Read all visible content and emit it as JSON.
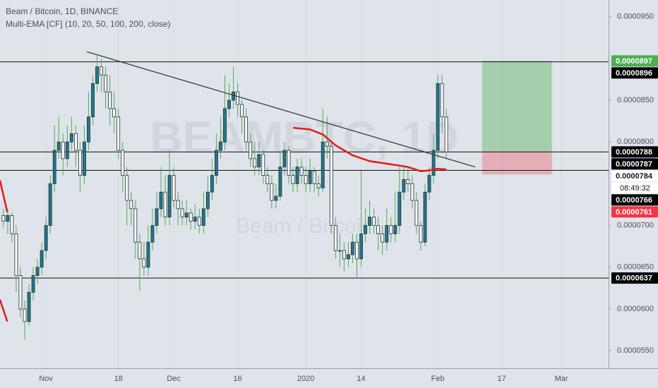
{
  "chart_data": {
    "type": "candlestick",
    "title": "Beam / Bitcoin, 1D, BINANCE",
    "indicator": "Multi-EMA [CF] (10, 20, 50, 100, 200, close)",
    "watermark": "BEAMBTC, 1D",
    "watermark_sub": "Beam / Bitcoin",
    "up_color": "#217a8a",
    "down_color": "#ffffff",
    "wick_color": "#4fae55",
    "open": [
      7.12e-05,
      7.05e-05,
      7.12e-05,
      6.9e-05,
      6.4e-05,
      6e-05,
      5.85e-05,
      6.2e-05,
      6.4e-05,
      6.5e-05,
      6.7e-05,
      7e-05,
      7.5e-05,
      7.9e-05,
      8e-05,
      7.8e-05,
      8e-05,
      8.1e-05,
      7.9e-05,
      7.6e-05,
      8e-05,
      8.3e-05,
      8.7e-05,
      8.9e-05,
      8.8e-05,
      8.6e-05,
      8.4e-05,
      8.3e-05,
      7.9e-05,
      7.6e-05,
      7.3e-05,
      7.2e-05,
      6.8e-05,
      6.6e-05,
      6.5e-05,
      6.8e-05,
      7e-05,
      7.2e-05,
      7.4e-05,
      7.1e-05,
      7.6e-05,
      7.3e-05,
      7.2e-05,
      7.1e-05,
      7.15e-05,
      7.05e-05,
      7.1e-05,
      7e-05,
      7.2e-05,
      7.4e-05,
      7.6e-05,
      7.9e-05,
      8e-05,
      8.4e-05,
      8.5e-05,
      8.6e-05,
      8.45e-05,
      8.3e-05,
      8e-05,
      7.8e-05,
      7.7e-05,
      7.85e-05,
      7.6e-05,
      7.5e-05,
      7.3e-05,
      7.35e-05,
      7.7e-05,
      7.9e-05,
      7.6e-05,
      7.5e-05,
      7.7e-05,
      7.6e-05,
      7.5e-05,
      7.65e-05,
      7.5e-05,
      7.45e-05,
      8e-05,
      7.95e-05,
      7e-05,
      6.7e-05,
      6.7e-05,
      6.6e-05,
      6.65e-05,
      6.8e-05,
      6.6e-05,
      6.9e-05,
      7e-05,
      7.1e-05,
      7e-05,
      6.9e-05,
      6.8e-05,
      7e-05,
      6.9e-05,
      7e-05,
      7.4e-05,
      7.55e-05,
      7.5e-05,
      7.3e-05,
      7e-05,
      6.8e-05,
      7.4e-05,
      7.6e-05,
      7.9e-05,
      8.7e-05,
      8.3e-05
    ],
    "high": [
      7.2e-05,
      7.2e-05,
      7.15e-05,
      7e-05,
      6.5e-05,
      6.1e-05,
      6.3e-05,
      6.5e-05,
      6.6e-05,
      6.8e-05,
      7.1e-05,
      7.6e-05,
      8.2e-05,
      8.3e-05,
      8.1e-05,
      8.2e-05,
      8.3e-05,
      8.2e-05,
      8e-05,
      8.2e-05,
      8.6e-05,
      8.8e-05,
      9.03e-05,
      9e-05,
      8.9e-05,
      8.8e-05,
      8.6e-05,
      8.4e-05,
      8e-05,
      7.7e-05,
      7.4e-05,
      7.3e-05,
      6.9e-05,
      6.8e-05,
      7e-05,
      7.2e-05,
      7.4e-05,
      7.7e-05,
      7.6e-05,
      7.9e-05,
      7.7e-05,
      7.4e-05,
      7.3e-05,
      7.3e-05,
      7.2e-05,
      7.25e-05,
      7.2e-05,
      7.4e-05,
      7.6e-05,
      7.8e-05,
      8.1e-05,
      8.3e-05,
      8.8e-05,
      8.7e-05,
      8.9e-05,
      8.7e-05,
      8.5e-05,
      8.4e-05,
      8.1e-05,
      8e-05,
      8e-05,
      7.9e-05,
      7.7e-05,
      7.6e-05,
      7.5e-05,
      7.9e-05,
      8e-05,
      7.95e-05,
      7.7e-05,
      7.8e-05,
      7.8e-05,
      7.7e-05,
      7.8e-05,
      7.7e-05,
      7.6e-05,
      8.4e-05,
      8.3e-05,
      8e-05,
      7.1e-05,
      6.9e-05,
      6.8e-05,
      6.8e-05,
      6.9e-05,
      6.9e-05,
      7.65e-05,
      7.2e-05,
      7.3e-05,
      7.2e-05,
      7.1e-05,
      7e-05,
      7.2e-05,
      7.1e-05,
      7.4e-05,
      7.7e-05,
      7.7e-05,
      7.7e-05,
      7.6e-05,
      7.4e-05,
      7.05e-05,
      7.5e-05,
      7.7e-05,
      8.1e-05,
      8.8e-05,
      8.8e-05,
      8.4e-05
    ],
    "low": [
      6.98e-05,
      6.9e-05,
      6.8e-05,
      6.2e-05,
      5.9e-05,
      5.63e-05,
      5.8e-05,
      6.1e-05,
      6.3e-05,
      6.4e-05,
      6.6e-05,
      6.9e-05,
      7.4e-05,
      7.8e-05,
      7.6e-05,
      7.7e-05,
      7.9e-05,
      7.7e-05,
      7.4e-05,
      7.5e-05,
      7.9e-05,
      8.2e-05,
      8.6e-05,
      8.6e-05,
      8.4e-05,
      8.2e-05,
      8.1e-05,
      7.8e-05,
      7.4e-05,
      7e-05,
      7e-05,
      6.6e-05,
      6.22e-05,
      6.4e-05,
      6.4e-05,
      6.7e-05,
      6.9e-05,
      7.1e-05,
      7e-05,
      7e-05,
      7.2e-05,
      7e-05,
      7e-05,
      7e-05,
      6.95e-05,
      6.95e-05,
      6.9e-05,
      6.9e-05,
      7.1e-05,
      7.3e-05,
      7.5e-05,
      7.8e-05,
      7.9e-05,
      8.3e-05,
      8.4e-05,
      8.3e-05,
      8.1e-05,
      7.9e-05,
      7.7e-05,
      7.6e-05,
      7.6e-05,
      7.5e-05,
      7.4e-05,
      7.2e-05,
      7.2e-05,
      7.3e-05,
      7.6e-05,
      7.5e-05,
      7.4e-05,
      7.4e-05,
      7.5e-05,
      7.4e-05,
      7.4e-05,
      7.4e-05,
      7.35e-05,
      7.4e-05,
      7.8e-05,
      6.9e-05,
      6.6e-05,
      6.5e-05,
      6.45e-05,
      6.5e-05,
      6.55e-05,
      6.37e-05,
      6.5e-05,
      6.8e-05,
      6.9e-05,
      6.9e-05,
      6.7e-05,
      6.65e-05,
      6.7e-05,
      6.8e-05,
      6.8e-05,
      6.9e-05,
      7.3e-05,
      7.4e-05,
      7.2e-05,
      6.9e-05,
      6.7e-05,
      6.75e-05,
      7.3e-05,
      7.5e-05,
      7.8e-05,
      8.1e-05,
      7.8e-05
    ],
    "close": [
      7.05e-05,
      7.12e-05,
      6.9e-05,
      6.4e-05,
      6e-05,
      5.85e-05,
      6.2e-05,
      6.4e-05,
      6.5e-05,
      6.7e-05,
      7e-05,
      7.5e-05,
      7.9e-05,
      8e-05,
      7.8e-05,
      8e-05,
      8.1e-05,
      7.9e-05,
      7.6e-05,
      8e-05,
      8.3e-05,
      8.7e-05,
      8.9e-05,
      8.8e-05,
      8.6e-05,
      8.4e-05,
      8.3e-05,
      7.9e-05,
      7.6e-05,
      7.3e-05,
      7.2e-05,
      6.8e-05,
      6.6e-05,
      6.5e-05,
      6.8e-05,
      7e-05,
      7.2e-05,
      7.4e-05,
      7.1e-05,
      7.6e-05,
      7.3e-05,
      7.2e-05,
      7.1e-05,
      7.15e-05,
      7.05e-05,
      7.1e-05,
      7e-05,
      7.2e-05,
      7.4e-05,
      7.6e-05,
      7.9e-05,
      8e-05,
      8.4e-05,
      8.5e-05,
      8.6e-05,
      8.45e-05,
      8.3e-05,
      8e-05,
      7.8e-05,
      7.7e-05,
      7.85e-05,
      7.6e-05,
      7.5e-05,
      7.3e-05,
      7.35e-05,
      7.7e-05,
      7.9e-05,
      7.6e-05,
      7.5e-05,
      7.7e-05,
      7.6e-05,
      7.5e-05,
      7.65e-05,
      7.5e-05,
      7.45e-05,
      8e-05,
      7.95e-05,
      7e-05,
      6.7e-05,
      6.7e-05,
      6.6e-05,
      6.65e-05,
      6.8e-05,
      6.6e-05,
      6.9e-05,
      7e-05,
      7.1e-05,
      7e-05,
      6.9e-05,
      6.8e-05,
      7e-05,
      6.9e-05,
      7e-05,
      7.4e-05,
      7.55e-05,
      7.5e-05,
      7.3e-05,
      7e-05,
      6.8e-05,
      7.4e-05,
      7.6e-05,
      7.9e-05,
      8.7e-05,
      8.3e-05,
      7.88e-05
    ],
    "xlim": [
      -0.8,
      142.1
    ],
    "xticks": [
      {
        "value": 10,
        "label": "Nov"
      },
      {
        "value": 27,
        "label": "18"
      },
      {
        "value": 40,
        "label": "Dec"
      },
      {
        "value": 55,
        "label": "16"
      },
      {
        "value": 71,
        "label": "2020"
      },
      {
        "value": 84,
        "label": "14"
      },
      {
        "value": 102,
        "label": "Feb"
      },
      {
        "value": 117,
        "label": "17"
      },
      {
        "value": 131,
        "label": "Mar"
      }
    ],
    "ylim": [
      5.29e-05,
      9.7e-05
    ],
    "yticks": [
      {
        "value": 9.5e-05,
        "label": "0.0000950"
      },
      {
        "value": 8.5e-05,
        "label": "0.0000850"
      },
      {
        "value": 8e-05,
        "label": "0.0000800"
      },
      {
        "value": 7e-05,
        "label": "0.0000700"
      },
      {
        "value": 6.5e-05,
        "label": "0.0000650"
      },
      {
        "value": 6e-05,
        "label": "0.0000600"
      },
      {
        "value": 5.5e-05,
        "label": "0.0000550"
      }
    ],
    "ema": [
      {
        "color": "#e31b1b",
        "x": [
          -0.8,
          0.9
        ],
        "values": [
          7.54e-05,
          7.16e-05
        ]
      },
      {
        "color": "#e31b1b",
        "x": [
          -0.8,
          0.9
        ],
        "values": [
          6.11e-05,
          5.85e-05
        ]
      },
      {
        "color": "#e31b1b",
        "x": [
          68,
          72,
          75,
          78,
          82,
          86,
          90,
          95,
          98,
          100,
          102,
          104
        ],
        "values": [
          8.17e-05,
          8.15e-05,
          8.09e-05,
          7.96e-05,
          7.84e-05,
          7.77e-05,
          7.74e-05,
          7.7e-05,
          7.65e-05,
          7.66e-05,
          7.68e-05,
          7.67e-05
        ]
      }
    ],
    "trendline": {
      "color": "#2d2f36",
      "x": [
        19.6,
        110.8
      ],
      "values": [
        9.08e-05,
        7.7e-05
      ]
    },
    "levels": [
      8.96e-05,
      7.88e-05,
      7.66e-05,
      6.37e-05
    ],
    "position": {
      "x": [
        112.4,
        128.8
      ],
      "target": 8.97e-05,
      "entry": 7.89e-05,
      "stop": 7.61e-05
    },
    "price_labels": [
      {
        "value": 8.97e-05,
        "bg": "#4caf50",
        "fg": "#ffffff"
      },
      {
        "value": 8.96e-05,
        "bg": "#000000",
        "fg": "#ffffff"
      },
      {
        "value": 7.88e-05,
        "bg": "#000000",
        "fg": "#ffffff"
      },
      {
        "value": 7.87e-05,
        "bg": "#000000",
        "fg": "#ffffff"
      },
      {
        "value": 7.84e-05,
        "bg": "#ffffff",
        "fg": "#131722",
        "countdown": "08:49:32"
      },
      {
        "value": 7.66e-05,
        "bg": "#000000",
        "fg": "#ffffff"
      },
      {
        "value": 7.61e-05,
        "bg": "#f23645",
        "fg": "#ffffff"
      },
      {
        "value": 6.37e-05,
        "bg": "#000000",
        "fg": "#ffffff"
      }
    ]
  }
}
